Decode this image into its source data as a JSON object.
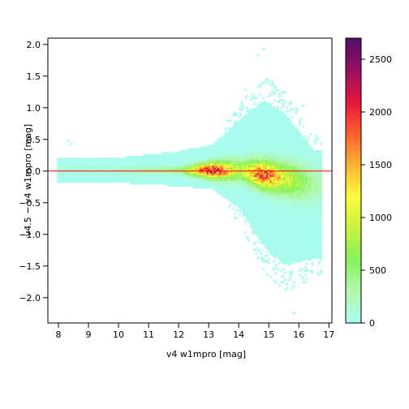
{
  "chart_data": {
    "type": "heatmap",
    "title": "",
    "xlabel": "v4 w1mpro [mag]",
    "ylabel": "v4.5 − v4 w1mpro [mag]",
    "xlim": [
      7.65,
      17.1
    ],
    "ylim": [
      -2.4,
      2.1
    ],
    "xticks": [
      "8",
      "9",
      "10",
      "11",
      "12",
      "13",
      "14",
      "15",
      "16",
      "17"
    ],
    "yticks": [
      "−2.0",
      "−1.5",
      "−1.0",
      "−0.5",
      "0.0",
      "0.5",
      "1.0",
      "1.5",
      "2.0"
    ],
    "colorbar": {
      "min": 0,
      "max": 2700,
      "ticks": [
        "0",
        "500",
        "1000",
        "1500",
        "2000",
        "2500"
      ],
      "colors": [
        "#a8fdf0",
        "#b3f7a8",
        "#86f25a",
        "#c8f33d",
        "#fdfd3b",
        "#fdb430",
        "#fd5f2c",
        "#e8163c",
        "#9b0f5e",
        "#520f69"
      ]
    },
    "reference_line": {
      "y": 0.0,
      "color": "#ff0000"
    },
    "density_summary": [
      {
        "x": 8.0,
        "y_low": -0.2,
        "y_high": 0.2,
        "peak_count": 100
      },
      {
        "x": 10.0,
        "y_low": -0.2,
        "y_high": 0.2,
        "peak_count": 150
      },
      {
        "x": 12.0,
        "y_low": -0.25,
        "y_high": 0.3,
        "peak_count": 500
      },
      {
        "x": 13.1,
        "y_low": -0.3,
        "y_high": 0.4,
        "peak_count": 2700
      },
      {
        "x": 14.0,
        "y_low": -0.6,
        "y_high": 0.8,
        "peak_count": 900
      },
      {
        "x": 14.8,
        "y_low": -1.2,
        "y_high": 1.1,
        "peak_count": 2300
      },
      {
        "x": 15.5,
        "y_low": -1.5,
        "y_high": 0.9,
        "peak_count": 1200
      },
      {
        "x": 16.5,
        "y_low": -1.4,
        "y_high": 0.3,
        "peak_count": 300
      }
    ]
  }
}
